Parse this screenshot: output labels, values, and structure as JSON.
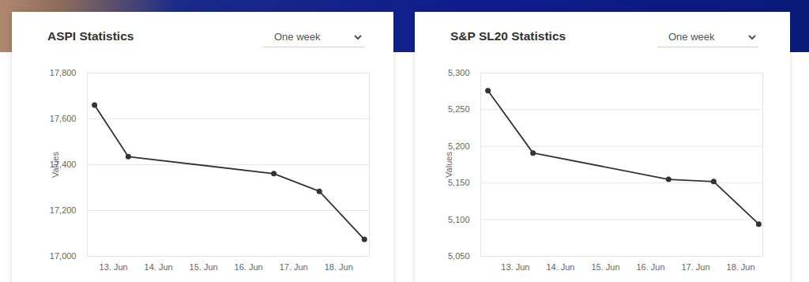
{
  "chart_data": [
    {
      "type": "line",
      "title": "ASPI Statistics",
      "dropdown": "One week",
      "ylabel": "Values",
      "x": [
        12.58,
        13.33,
        16.56,
        17.57,
        18.57
      ],
      "values": [
        17660,
        17435,
        17361,
        17284,
        17074
      ],
      "xlim": [
        12.42,
        18.68
      ],
      "xticks": [
        {
          "value": 13,
          "label": "13. Jun"
        },
        {
          "value": 14,
          "label": "14. Jun"
        },
        {
          "value": 15,
          "label": "15. Jun"
        },
        {
          "value": 16,
          "label": "16. Jun"
        },
        {
          "value": 17,
          "label": "17. Jun"
        },
        {
          "value": 18,
          "label": "18. Jun"
        }
      ],
      "ylim": [
        17000,
        17800
      ],
      "yticks": [
        {
          "value": 17000,
          "label": "17,000"
        },
        {
          "value": 17200,
          "label": "17,200"
        },
        {
          "value": 17400,
          "label": "17,400"
        },
        {
          "value": 17600,
          "label": "17,600"
        },
        {
          "value": 17800,
          "label": "17,800"
        }
      ],
      "grid": true,
      "color": "#333333",
      "marker": "circle"
    },
    {
      "type": "line",
      "title": "S&P SL20 Statistics",
      "dropdown": "One week",
      "ylabel": "Values",
      "x": [
        12.39,
        13.39,
        16.4,
        17.4,
        18.4
      ],
      "values": [
        5276,
        5191,
        5155,
        5152,
        5094
      ],
      "xlim": [
        12.23,
        18.49
      ],
      "xticks": [
        {
          "value": 13,
          "label": "13. Jun"
        },
        {
          "value": 14,
          "label": "14. Jun"
        },
        {
          "value": 15,
          "label": "15. Jun"
        },
        {
          "value": 16,
          "label": "16. Jun"
        },
        {
          "value": 17,
          "label": "17. Jun"
        },
        {
          "value": 18,
          "label": "18. Jun"
        }
      ],
      "ylim": [
        5050,
        5300
      ],
      "yticks": [
        {
          "value": 5050,
          "label": "5,050"
        },
        {
          "value": 5100,
          "label": "5,100"
        },
        {
          "value": 5150,
          "label": "5,150"
        },
        {
          "value": 5200,
          "label": "5,200"
        },
        {
          "value": 5250,
          "label": "5,250"
        },
        {
          "value": 5300,
          "label": "5,300"
        }
      ],
      "grid": true,
      "color": "#333333",
      "marker": "circle"
    }
  ]
}
